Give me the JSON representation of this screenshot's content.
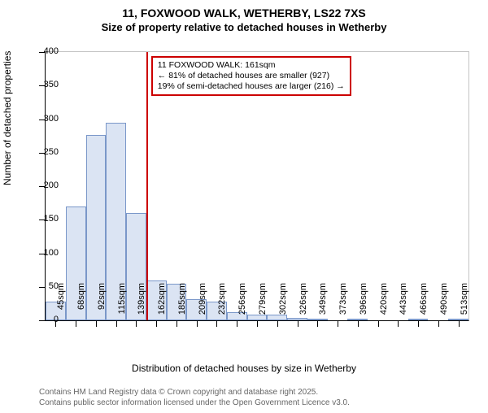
{
  "title": "11, FOXWOOD WALK, WETHERBY, LS22 7XS",
  "subtitle": "Size of property relative to detached houses in Wetherby",
  "chart": {
    "type": "bar",
    "ylabel": "Number of detached properties",
    "xlabel": "Distribution of detached houses by size in Wetherby",
    "ylim": [
      0,
      400
    ],
    "ytick_step": 50,
    "bar_fill": "#dbe4f3",
    "bar_stroke": "#7a97c9",
    "background_color": "#ffffff",
    "marker_color": "#cc0000",
    "marker_x_index": 5,
    "categories": [
      "45sqm",
      "68sqm",
      "92sqm",
      "115sqm",
      "139sqm",
      "162sqm",
      "185sqm",
      "209sqm",
      "232sqm",
      "256sqm",
      "279sqm",
      "302sqm",
      "326sqm",
      "349sqm",
      "373sqm",
      "396sqm",
      "420sqm",
      "443sqm",
      "466sqm",
      "490sqm",
      "513sqm"
    ],
    "values": [
      28,
      170,
      276,
      295,
      160,
      60,
      55,
      32,
      28,
      12,
      8,
      9,
      4,
      3,
      0,
      1,
      0,
      0,
      1,
      0,
      1
    ],
    "annot": {
      "line1": "11 FOXWOOD WALK: 161sqm",
      "line2": "← 81% of detached houses are smaller (927)",
      "line3": "19% of semi-detached houses are larger (216) →"
    },
    "label_fontsize": 12,
    "tick_fontsize": 11
  },
  "footer": {
    "line1": "Contains HM Land Registry data © Crown copyright and database right 2025.",
    "line2": "Contains public sector information licensed under the Open Government Licence v3.0."
  }
}
